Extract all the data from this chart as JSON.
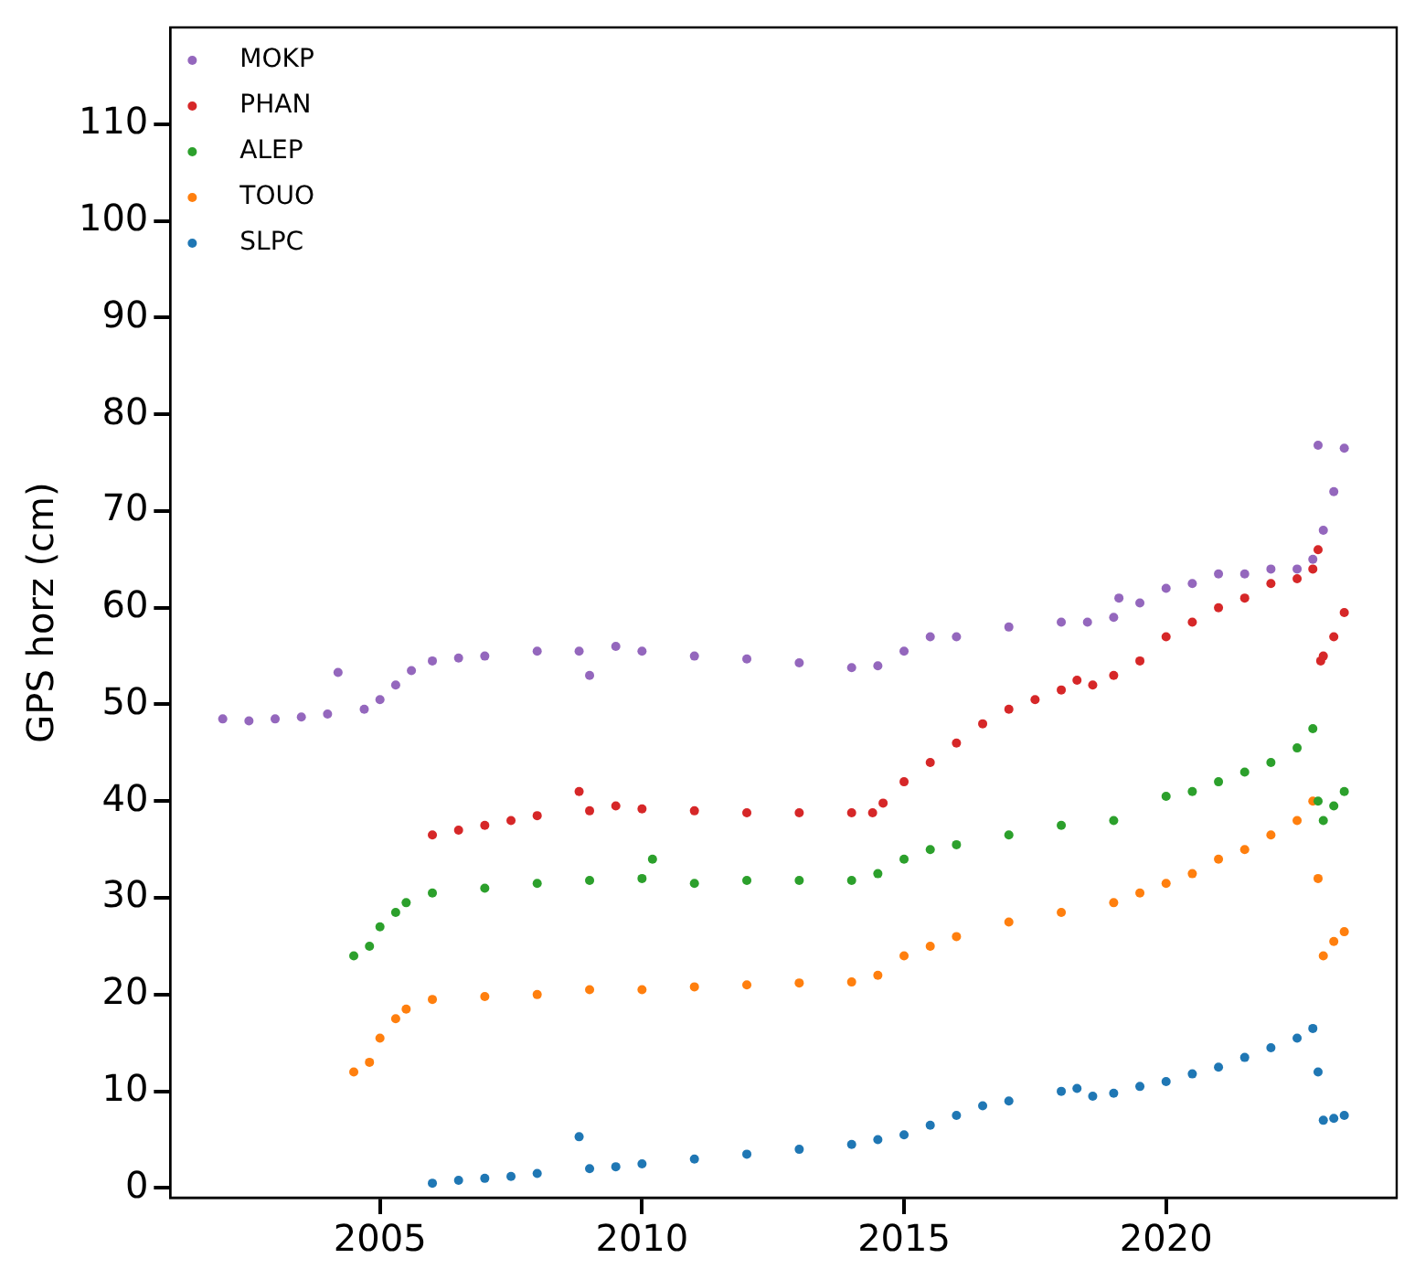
{
  "chart_data": {
    "type": "scatter",
    "ylabel": "GPS horz (cm)",
    "xlim": [
      2001,
      2024.4
    ],
    "ylim": [
      -1,
      120
    ],
    "xticks": [
      2005,
      2010,
      2015,
      2020
    ],
    "yticks": [
      0,
      10,
      20,
      30,
      40,
      50,
      60,
      70,
      80,
      90,
      100,
      110
    ],
    "legend": "top left",
    "marker": "circle",
    "series": [
      {
        "name": "MOKP",
        "color": "#9467bd",
        "x": [
          2002,
          2002.5,
          2003,
          2003.5,
          2004,
          2004.2,
          2004.7,
          2005,
          2005.3,
          2005.6,
          2006,
          2006.5,
          2007,
          2008,
          2008.8,
          2009,
          2009.5,
          2010,
          2011,
          2012,
          2013,
          2014,
          2014.5,
          2015,
          2015.5,
          2016,
          2017,
          2018,
          2018.5,
          2019,
          2019.1,
          2019.5,
          2020,
          2020.5,
          2021,
          2021.5,
          2022,
          2022.5,
          2022.8,
          2022.9,
          2023,
          2023.2,
          2023.4
        ],
        "values": [
          48.5,
          48.3,
          48.5,
          48.7,
          49,
          53.3,
          49.5,
          50.5,
          52,
          53.5,
          54.5,
          54.8,
          55,
          55.5,
          55.5,
          53,
          56,
          55.5,
          55,
          54.7,
          54.3,
          53.8,
          54,
          55.5,
          57,
          57,
          58,
          58.5,
          58.5,
          59,
          61,
          60.5,
          62,
          62.5,
          63.5,
          63.5,
          64,
          64,
          65,
          76.8,
          68,
          72,
          76.5
        ]
      },
      {
        "name": "PHAN",
        "color": "#d62728",
        "x": [
          2006,
          2006.5,
          2007,
          2007.5,
          2008,
          2008.8,
          2009,
          2009.5,
          2010,
          2011,
          2012,
          2013,
          2014,
          2014.4,
          2014.6,
          2015,
          2015.5,
          2016,
          2016.5,
          2017,
          2017.5,
          2018,
          2018.3,
          2018.6,
          2019,
          2019.5,
          2020,
          2020.5,
          2021,
          2021.5,
          2022,
          2022.5,
          2022.8,
          2022.9,
          2022.95,
          2023,
          2023.2,
          2023.4
        ],
        "values": [
          36.5,
          37,
          37.5,
          38,
          38.5,
          41,
          39,
          39.5,
          39.2,
          39,
          38.8,
          38.8,
          38.8,
          38.8,
          39.8,
          42,
          44,
          46,
          48,
          49.5,
          50.5,
          51.5,
          52.5,
          52,
          53,
          54.5,
          57,
          58.5,
          60,
          61,
          62.5,
          63,
          64,
          66,
          54.5,
          55,
          57,
          59.5
        ]
      },
      {
        "name": "ALEP",
        "color": "#2ca02c",
        "x": [
          2004.5,
          2004.8,
          2005,
          2005.3,
          2005.5,
          2006,
          2007,
          2008,
          2009,
          2010,
          2010.2,
          2011,
          2012,
          2013,
          2014,
          2014.5,
          2015,
          2015.5,
          2016,
          2017,
          2018,
          2019,
          2020,
          2020.5,
          2021,
          2021.5,
          2022,
          2022.5,
          2022.8,
          2022.9,
          2023,
          2023.2,
          2023.4
        ],
        "values": [
          24,
          25,
          27,
          28.5,
          29.5,
          30.5,
          31,
          31.5,
          31.8,
          32,
          34,
          31.5,
          31.8,
          31.8,
          31.8,
          32.5,
          34,
          35,
          35.5,
          36.5,
          37.5,
          38,
          40.5,
          41,
          42,
          43,
          44,
          45.5,
          47.5,
          40,
          38,
          39.5,
          41
        ]
      },
      {
        "name": "TOUO",
        "color": "#ff7f0e",
        "x": [
          2004.5,
          2004.8,
          2005,
          2005.3,
          2005.5,
          2006,
          2007,
          2008,
          2009,
          2010,
          2011,
          2012,
          2013,
          2014,
          2014.5,
          2015,
          2015.5,
          2016,
          2017,
          2018,
          2019,
          2019.5,
          2020,
          2020.5,
          2021,
          2021.5,
          2022,
          2022.5,
          2022.8,
          2022.9,
          2023,
          2023.2,
          2023.4
        ],
        "values": [
          12,
          13,
          15.5,
          17.5,
          18.5,
          19.5,
          19.8,
          20,
          20.5,
          20.5,
          20.8,
          21,
          21.2,
          21.3,
          22,
          24,
          25,
          26,
          27.5,
          28.5,
          29.5,
          30.5,
          31.5,
          32.5,
          34,
          35,
          36.5,
          38,
          40,
          32,
          24,
          25.5,
          26.5
        ]
      },
      {
        "name": "SLPC",
        "color": "#1f77b4",
        "x": [
          2006,
          2006.5,
          2007,
          2007.5,
          2008,
          2008.8,
          2009,
          2009.5,
          2010,
          2011,
          2012,
          2013,
          2014,
          2014.5,
          2015,
          2015.5,
          2016,
          2016.5,
          2017,
          2018,
          2018.3,
          2018.6,
          2019,
          2019.5,
          2020,
          2020.5,
          2021,
          2021.5,
          2022,
          2022.5,
          2022.8,
          2022.9,
          2023,
          2023.2,
          2023.4
        ],
        "values": [
          0.5,
          0.8,
          1,
          1.2,
          1.5,
          5.3,
          2,
          2.2,
          2.5,
          3,
          3.5,
          4,
          4.5,
          5,
          5.5,
          6.5,
          7.5,
          8.5,
          9,
          10,
          10.3,
          9.5,
          9.8,
          10.5,
          11,
          11.8,
          12.5,
          13.5,
          14.5,
          15.5,
          16.5,
          12,
          7,
          7.2,
          7.5
        ]
      }
    ]
  }
}
